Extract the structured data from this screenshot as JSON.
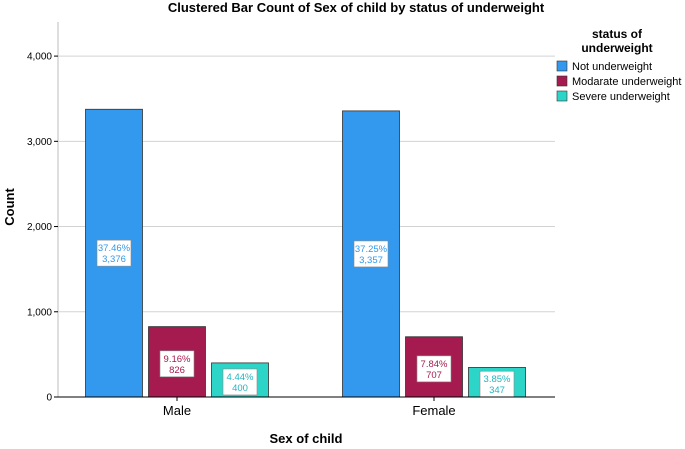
{
  "chart_data": {
    "type": "bar",
    "title": "Clustered Bar Count of Sex of child by status of underweight",
    "xlabel": "Sex of child",
    "ylabel": "Count",
    "categories": [
      "Male",
      "Female"
    ],
    "ylim": [
      0,
      4400
    ],
    "yticks": [
      0,
      1000,
      2000,
      3000,
      4000
    ],
    "ytick_labels": [
      "0",
      "1,000",
      "2,000",
      "3,000",
      "4,000"
    ],
    "legend_title": "status of underweight",
    "series": [
      {
        "name": "Not underweight",
        "color": "#3399ee",
        "text_color": "#3399ee",
        "values": [
          3376,
          3357
        ],
        "labels": [
          {
            "percent": "37.46%",
            "count": "3,376"
          },
          {
            "percent": "37.25%",
            "count": "3,357"
          }
        ]
      },
      {
        "name": "Modarate underweight",
        "color": "#a51b4f",
        "text_color": "#a51b4f",
        "values": [
          826,
          707
        ],
        "labels": [
          {
            "percent": "9.16%",
            "count": "826"
          },
          {
            "percent": "7.84%",
            "count": "707"
          }
        ]
      },
      {
        "name": "Severe underweight",
        "color": "#2dd5c8",
        "text_color": "#22b5c0",
        "values": [
          400,
          347
        ],
        "labels": [
          {
            "percent": "4.44%",
            "count": "400"
          },
          {
            "percent": "3.85%",
            "count": "347"
          }
        ]
      }
    ]
  }
}
